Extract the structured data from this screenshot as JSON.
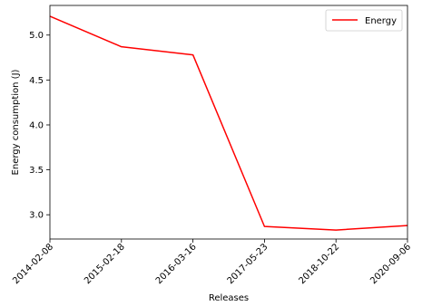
{
  "chart_data": {
    "type": "line",
    "title": "",
    "xlabel": "Releases",
    "ylabel": "Energy consumption (J)",
    "x": [
      "2014-02-08",
      "2015-02-18",
      "2016-03-16",
      "2017-05-23",
      "2018-10-22",
      "2020-09-06"
    ],
    "series": [
      {
        "name": "Energy",
        "color": "#ff0000",
        "values": [
          5.21,
          4.87,
          4.78,
          2.87,
          2.83,
          2.88
        ]
      }
    ],
    "yticks": [
      "3.0",
      "3.5",
      "4.0",
      "4.5",
      "5.0"
    ],
    "ylim": [
      2.73,
      5.33
    ],
    "grid": false,
    "legend": "top-right"
  }
}
